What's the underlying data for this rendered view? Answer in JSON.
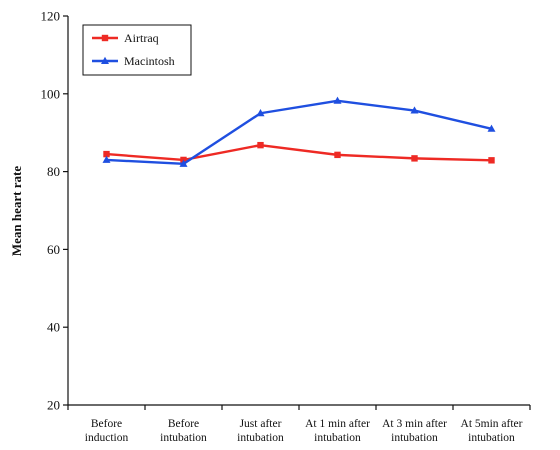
{
  "chart_data": {
    "type": "line",
    "ylabel": "Mean heart rate",
    "xlabel": "",
    "ylim": [
      20,
      120
    ],
    "yticks": [
      20,
      40,
      60,
      80,
      100,
      120
    ],
    "categories": [
      [
        "Before",
        "induction"
      ],
      [
        "Before",
        "intubation"
      ],
      [
        "Just after",
        "intubation"
      ],
      [
        "At 1 min after",
        "intubation"
      ],
      [
        "At 3 min after",
        "intubation"
      ],
      [
        "At 5min after",
        "intubation"
      ]
    ],
    "series": [
      {
        "name": "Airtraq",
        "color": "#ee2a24",
        "marker": "square",
        "values": [
          84.5,
          83,
          86.8,
          84.3,
          83.4,
          82.9
        ]
      },
      {
        "name": "Macintosh",
        "color": "#1f4fe0",
        "marker": "triangle",
        "values": [
          83,
          82,
          95,
          98.2,
          95.7,
          91
        ]
      }
    ],
    "legend": "top-left",
    "grid": false
  }
}
